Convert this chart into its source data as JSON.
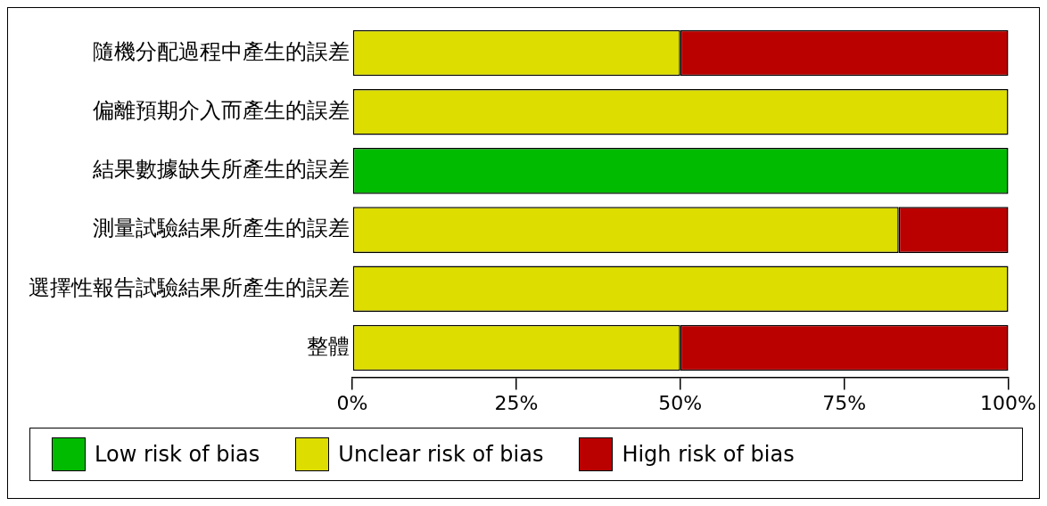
{
  "chart_data": {
    "type": "bar",
    "orientation": "horizontal",
    "stacked": true,
    "categories": [
      "隨機分配過程中產生的誤差",
      "偏離預期介入而產生的誤差",
      "結果數據缺失所產生的誤差",
      "測量試驗結果所產生的誤差",
      "選擇性報告試驗結果所產生的誤差",
      "整體"
    ],
    "series": [
      {
        "name": "Low risk of bias",
        "color": "#00bb00",
        "values": [
          0,
          0,
          100,
          0,
          0,
          0
        ]
      },
      {
        "name": "Unclear risk of bias",
        "color": "#dddd00",
        "values": [
          50,
          100,
          0,
          83.3,
          100,
          50
        ]
      },
      {
        "name": "High risk of bias",
        "color": "#bb0000",
        "values": [
          50,
          0,
          0,
          16.7,
          0,
          50
        ]
      }
    ],
    "xlim": [
      0,
      100
    ],
    "xticks": [
      {
        "value": 0,
        "label": "0%"
      },
      {
        "value": 25,
        "label": "25%"
      },
      {
        "value": 50,
        "label": "50%"
      },
      {
        "value": 75,
        "label": "75%"
      },
      {
        "value": 100,
        "label": "100%"
      }
    ],
    "grid": false,
    "legend": "bottom"
  }
}
